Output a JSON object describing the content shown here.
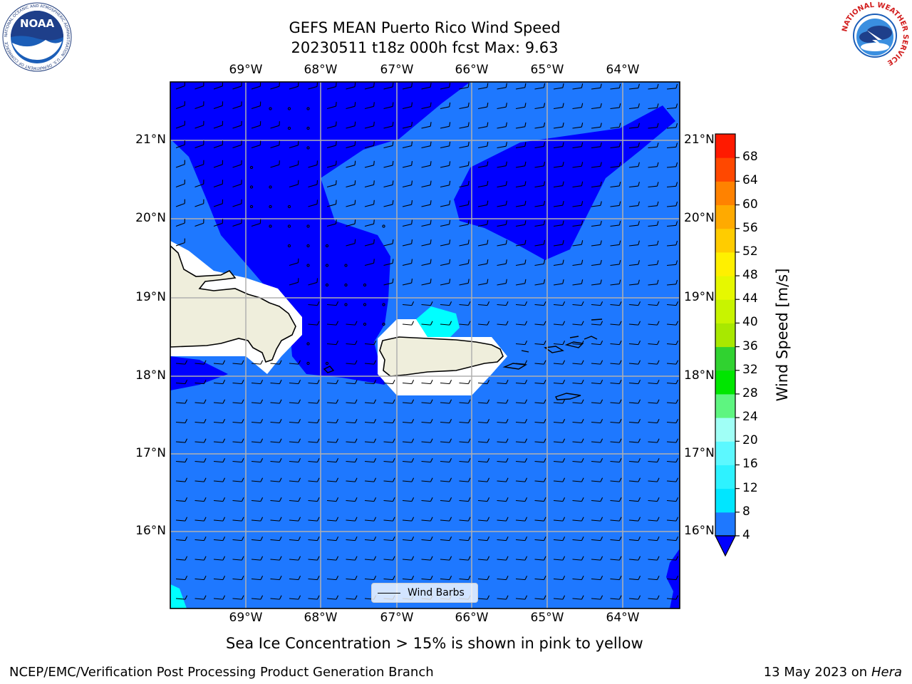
{
  "title": {
    "line1": "GEFS MEAN Puerto Rico Wind Speed",
    "line2": "20230511 t18z 000h fcst   Max: 9.63"
  },
  "map": {
    "lon_ticks": [
      "69°W",
      "68°W",
      "67°W",
      "66°W",
      "65°W",
      "64°W"
    ],
    "lat_ticks": [
      "21°N",
      "20°N",
      "19°N",
      "18°N",
      "17°N",
      "16°N"
    ],
    "legend_label": "Wind Barbs",
    "fill_colors": {
      "calm": "#0000ff",
      "light": "#1e78ff",
      "moderate": "#00ffff",
      "land": "#efeedc",
      "grid": "#b0b0b0"
    }
  },
  "colorbar": {
    "label": "Wind Speed [m/s]",
    "levels": [
      4,
      8,
      12,
      16,
      20,
      24,
      28,
      32,
      36,
      40,
      44,
      48,
      52,
      56,
      60,
      64,
      68
    ],
    "tick_labels": [
      "4",
      "8",
      "12",
      "16",
      "20",
      "24",
      "28",
      "32",
      "36",
      "40",
      "44",
      "48",
      "52",
      "56",
      "60",
      "64",
      "68"
    ],
    "colors": [
      "#1e78ff",
      "#00e6ff",
      "#2ef2ff",
      "#5cf8ff",
      "#a0fff6",
      "#5ef580",
      "#00e600",
      "#30d230",
      "#a8e800",
      "#c8f400",
      "#e6f800",
      "#fff000",
      "#ffcc00",
      "#ffaa00",
      "#ff8200",
      "#ff4800",
      "#ff1a00"
    ],
    "under_color": "#0000ff"
  },
  "caption": "Sea Ice Concentration > 15% is shown in pink to yellow",
  "footer": {
    "left": "NCEP/EMC/Verification Post Processing Product Generation Branch",
    "date": "13 May 2023 on",
    "machine": "Hera"
  },
  "logos": {
    "noaa_text": "NOAA",
    "noaa_ring": "NATIONAL OCEANIC AND ATMOSPHERIC ADMINISTRATION · U.S. DEPARTMENT OF COMMERCE",
    "nws_ring": "NATIONAL WEATHER SERVICE"
  }
}
